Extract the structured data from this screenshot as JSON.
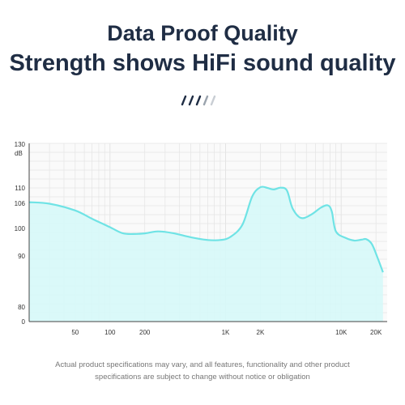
{
  "header": {
    "title_line1": "Data Proof Quality",
    "title_line2": "Strength shows HiFi sound quality"
  },
  "decor": {
    "slash_colors": [
      "#1f2d44",
      "#1f2d44",
      "#1f2d44",
      "#9aa3ad",
      "#c9ced4"
    ]
  },
  "colors": {
    "curve_fill": "#d6f8f8",
    "curve_stroke": "#6fe3e5",
    "grid": "#e4e4e4",
    "axis": "#444444"
  },
  "chart_data": {
    "type": "area",
    "title": "",
    "ylabel": "dB",
    "xlabel": "",
    "x_scale": "log",
    "grid": true,
    "xlim": [
      20,
      25000
    ],
    "y_ticks": [
      {
        "label": "130",
        "value": 130
      },
      {
        "label": "110",
        "value": 110
      },
      {
        "label": "106",
        "value": 106
      },
      {
        "label": "100",
        "value": 100
      },
      {
        "label": "90",
        "value": 90
      },
      {
        "label": "80",
        "value": 80
      },
      {
        "label": "0",
        "value": 0
      }
    ],
    "x_ticks": [
      {
        "label": "50",
        "value": 50
      },
      {
        "label": "100",
        "value": 100
      },
      {
        "label": "200",
        "value": 200
      },
      {
        "label": "1K",
        "value": 1000
      },
      {
        "label": "2K",
        "value": 2000
      },
      {
        "label": "10K",
        "value": 10000
      },
      {
        "label": "20K",
        "value": 20000
      }
    ],
    "series": [
      {
        "points": [
          [
            20,
            106.3
          ],
          [
            30,
            105.9
          ],
          [
            50,
            104.3
          ],
          [
            70,
            102.3
          ],
          [
            100,
            100.3
          ],
          [
            130,
            98.2
          ],
          [
            170,
            98.0
          ],
          [
            200,
            98.2
          ],
          [
            260,
            98.9
          ],
          [
            350,
            98.3
          ],
          [
            500,
            96.8
          ],
          [
            700,
            95.8
          ],
          [
            900,
            95.8
          ],
          [
            1100,
            96.9
          ],
          [
            1400,
            100.9
          ],
          [
            1700,
            107.8
          ],
          [
            2000,
            110.3
          ],
          [
            2300,
            110.0
          ],
          [
            2600,
            109.6
          ],
          [
            3000,
            110.1
          ],
          [
            3400,
            109.3
          ],
          [
            3800,
            104.8
          ],
          [
            4500,
            102.5
          ],
          [
            5500,
            103.3
          ],
          [
            6700,
            105.0
          ],
          [
            7700,
            105.5
          ],
          [
            8300,
            104.0
          ],
          [
            9000,
            98.9
          ],
          [
            11000,
            96.5
          ],
          [
            13000,
            95.6
          ],
          [
            15000,
            95.9
          ],
          [
            16500,
            96.1
          ],
          [
            18500,
            94.2
          ],
          [
            21000,
            89.2
          ],
          [
            23000,
            86.8
          ]
        ]
      }
    ]
  },
  "footnote": {
    "line1": "Actual product specifications may vary, and all features, functionality and other product",
    "line2": "specifications are subject to change without notice or obligation"
  }
}
